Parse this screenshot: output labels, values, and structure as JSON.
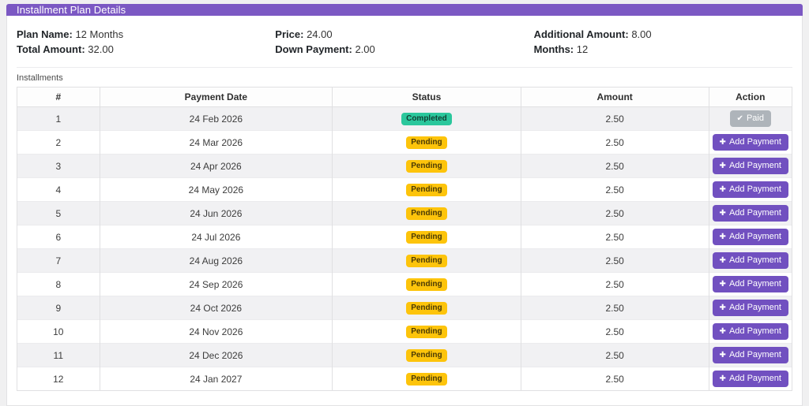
{
  "header": {
    "title": "Installment Plan Details"
  },
  "plan": {
    "columns": [
      [
        {
          "label": "Plan Name:",
          "value": "12 Months"
        },
        {
          "label": "Total Amount:",
          "value": "32.00"
        }
      ],
      [
        {
          "label": "Price:",
          "value": "24.00"
        },
        {
          "label": "Down Payment:",
          "value": "2.00"
        }
      ],
      [
        {
          "label": "Additional Amount:",
          "value": "8.00"
        },
        {
          "label": "Months:",
          "value": "12"
        }
      ]
    ]
  },
  "installments_label": "Installments",
  "table": {
    "headers": [
      "#",
      "Payment Date",
      "Status",
      "Amount",
      "Action"
    ],
    "paid_button_label": "Paid",
    "add_button_label": "Add Payment",
    "rows": [
      {
        "num": "1",
        "date": "24 Feb 2026",
        "status": "Completed",
        "amount": "2.50",
        "action": "paid"
      },
      {
        "num": "2",
        "date": "24 Mar 2026",
        "status": "Pending",
        "amount": "2.50",
        "action": "add"
      },
      {
        "num": "3",
        "date": "24 Apr 2026",
        "status": "Pending",
        "amount": "2.50",
        "action": "add"
      },
      {
        "num": "4",
        "date": "24 May 2026",
        "status": "Pending",
        "amount": "2.50",
        "action": "add"
      },
      {
        "num": "5",
        "date": "24 Jun 2026",
        "status": "Pending",
        "amount": "2.50",
        "action": "add"
      },
      {
        "num": "6",
        "date": "24 Jul 2026",
        "status": "Pending",
        "amount": "2.50",
        "action": "add"
      },
      {
        "num": "7",
        "date": "24 Aug 2026",
        "status": "Pending",
        "amount": "2.50",
        "action": "add"
      },
      {
        "num": "8",
        "date": "24 Sep 2026",
        "status": "Pending",
        "amount": "2.50",
        "action": "add"
      },
      {
        "num": "9",
        "date": "24 Oct 2026",
        "status": "Pending",
        "amount": "2.50",
        "action": "add"
      },
      {
        "num": "10",
        "date": "24 Nov 2026",
        "status": "Pending",
        "amount": "2.50",
        "action": "add"
      },
      {
        "num": "11",
        "date": "24 Dec 2026",
        "status": "Pending",
        "amount": "2.50",
        "action": "add"
      },
      {
        "num": "12",
        "date": "24 Jan 2027",
        "status": "Pending",
        "amount": "2.50",
        "action": "add"
      }
    ]
  },
  "icons": {
    "paid_check": "✔",
    "add_plus": "✚"
  },
  "colors": {
    "header_purple": "#7b58c3",
    "add_button_purple": "#7150c0",
    "paid_button_gray": "#aeb4ba",
    "completed_badge": "#2bc79c",
    "pending_badge": "#fdc40b",
    "page_background": "#f0f0f1"
  }
}
